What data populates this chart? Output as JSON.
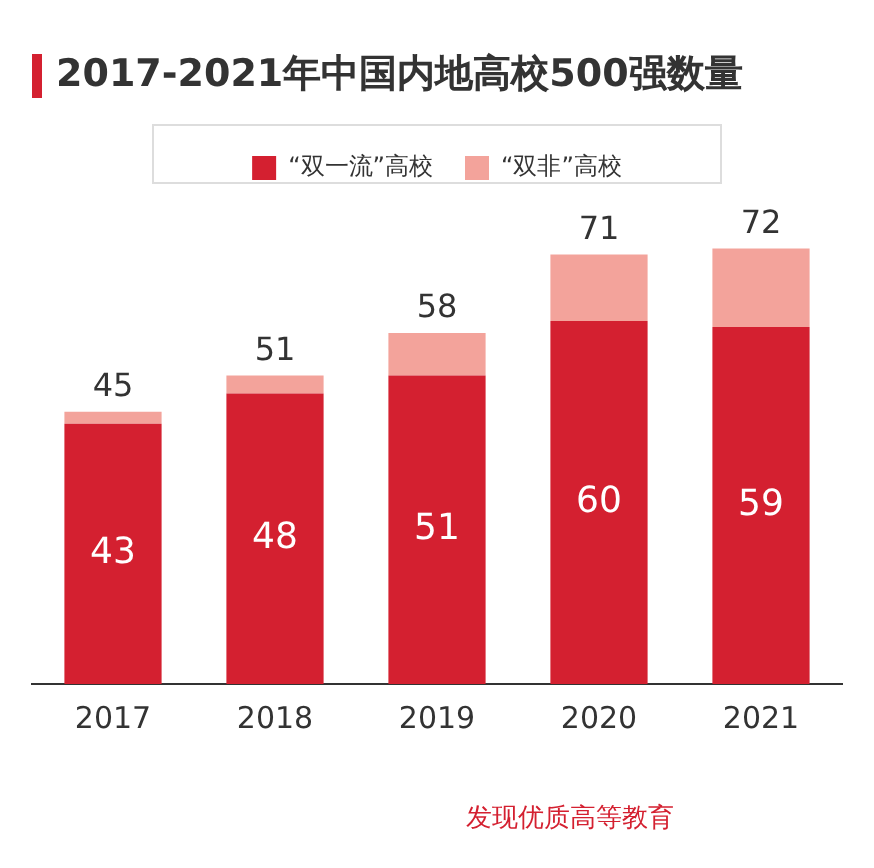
{
  "chart_data": {
    "type": "bar",
    "title": "2017-2021年中国内地高校500强数量",
    "categories": [
      "2017",
      "2018",
      "2019",
      "2020",
      "2021"
    ],
    "stacked": true,
    "legend": "top",
    "grid": false,
    "series": [
      {
        "name": "“双一流”高校",
        "color": "#d42030",
        "values": [
          43,
          48,
          51,
          60,
          59
        ],
        "value_labels": [
          "43",
          "48",
          "51",
          "60",
          "59"
        ]
      },
      {
        "name": "“双非”高校",
        "color": "#f3a39b",
        "values": [
          2,
          3,
          7,
          11,
          13
        ]
      }
    ],
    "totals": [
      "45",
      "51",
      "58",
      "71",
      "72"
    ],
    "annotations": [
      "发现优质高等教育"
    ]
  }
}
